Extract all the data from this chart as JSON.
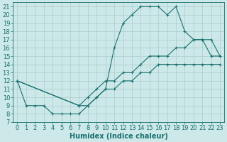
{
  "xlabel": "Humidex (Indice chaleur)",
  "bg_color": "#cce8e8",
  "line_color": "#1a7070",
  "xlim": [
    -0.5,
    23.5
  ],
  "ylim": [
    7,
    21.5
  ],
  "xticks": [
    0,
    1,
    2,
    3,
    4,
    5,
    6,
    7,
    8,
    9,
    10,
    11,
    12,
    13,
    14,
    15,
    16,
    17,
    18,
    19,
    20,
    21,
    22,
    23
  ],
  "yticks": [
    7,
    8,
    9,
    10,
    11,
    12,
    13,
    14,
    15,
    16,
    17,
    18,
    19,
    20,
    21
  ],
  "curve1_x": [
    0,
    1,
    2,
    3,
    4,
    5,
    6,
    7,
    8,
    9,
    10,
    11,
    12,
    13,
    14,
    15,
    16,
    17,
    18,
    19,
    20,
    21,
    22,
    23
  ],
  "curve1_y": [
    12,
    9,
    9,
    9,
    8,
    8,
    8,
    8,
    9,
    10,
    11,
    16,
    19,
    20,
    21,
    21,
    21,
    20,
    21,
    18,
    17,
    17,
    17,
    15
  ],
  "curve2_x": [
    0,
    7,
    8,
    9,
    10,
    11,
    12,
    13,
    14,
    15,
    16,
    17,
    18,
    19,
    20,
    21,
    22,
    23
  ],
  "curve2_y": [
    12,
    9,
    10,
    11,
    12,
    12,
    13,
    13,
    14,
    15,
    15,
    15,
    16,
    16,
    17,
    17,
    15,
    15
  ],
  "curve3_x": [
    0,
    7,
    8,
    9,
    10,
    11,
    12,
    13,
    14,
    15,
    16,
    17,
    18,
    19,
    20,
    21,
    22,
    23
  ],
  "curve3_y": [
    12,
    9,
    9,
    10,
    11,
    11,
    12,
    12,
    13,
    13,
    14,
    14,
    14,
    14,
    14,
    14,
    14,
    14
  ],
  "gridcolor": "#aacccc",
  "xlabel_fontsize": 7,
  "tick_fontsize": 6
}
